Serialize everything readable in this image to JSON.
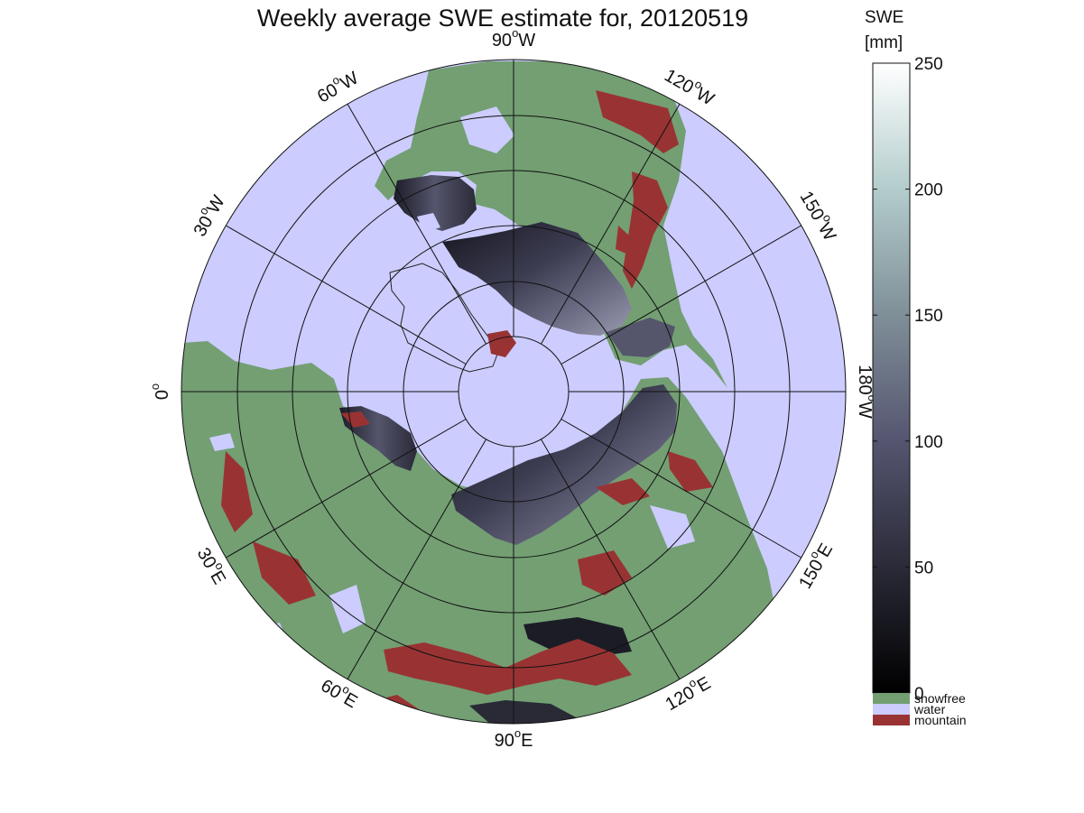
{
  "map": {
    "title": "Weekly average SWE estimate for, 20120519",
    "projection": "north-polar-stereographic",
    "longitude_labels": [
      {
        "deg": "90",
        "hemi": "W"
      },
      {
        "deg": "120",
        "hemi": "W"
      },
      {
        "deg": "150",
        "hemi": "W"
      },
      {
        "deg": "180",
        "hemi": "W"
      },
      {
        "deg": "150",
        "hemi": "E"
      },
      {
        "deg": "120",
        "hemi": "E"
      },
      {
        "deg": "90",
        "hemi": "E"
      },
      {
        "deg": "60",
        "hemi": "E"
      },
      {
        "deg": "30",
        "hemi": "E"
      },
      {
        "deg": "0",
        "hemi": ""
      },
      {
        "deg": "30",
        "hemi": "W"
      },
      {
        "deg": "60",
        "hemi": "W"
      }
    ],
    "colors": {
      "water": "#ccccff",
      "snowfree": "#739f73",
      "mountain": "#993333",
      "snow_low": "#0a0a10",
      "snow_mid": "#4d4d66",
      "snow_high": "#ffffff"
    }
  },
  "colorbar": {
    "title_line1": "SWE",
    "title_line2": "[mm]",
    "min": 0,
    "max": 250,
    "ticks": [
      "250",
      "200",
      "150",
      "100",
      "50",
      "0"
    ],
    "categories": [
      {
        "label": "snowfree",
        "color": "#739f73"
      },
      {
        "label": "water",
        "color": "#ccccff"
      },
      {
        "label": "mountain",
        "color": "#993333"
      }
    ]
  }
}
